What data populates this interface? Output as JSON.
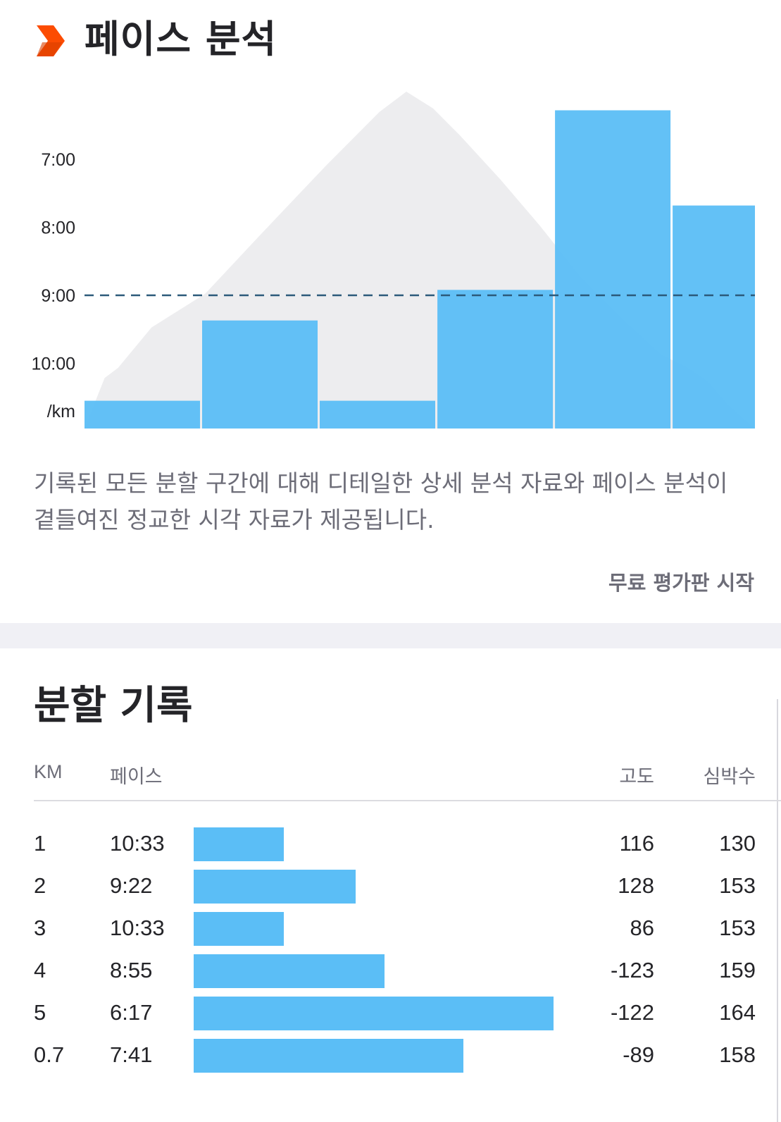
{
  "pace_section": {
    "title": "페이스 분석",
    "description": "기록된 모든 분할 구간에 대해 디테일한 상세 분석 자료와 페이스 분석이 곁들여진 정교한 시각 자료가 제공됩니다.",
    "trial_button": "무료 평가판 시작"
  },
  "colors": {
    "accent": "#fc4c02",
    "bar": "#5bbef6",
    "elevation": "#ededef",
    "average_line": "#2c5a7a"
  },
  "icons": {
    "header": "chevron-right-icon"
  },
  "chart_data": {
    "type": "bar",
    "y_axis": {
      "unit_label": "/km",
      "ticks": [
        "7:00",
        "8:00",
        "9:00",
        "10:00"
      ],
      "tick_minutes": [
        7,
        8,
        9,
        10
      ],
      "inverted": true
    },
    "average_line_pace": "9:00",
    "series": [
      {
        "distances_km": [
          1,
          1,
          1,
          1,
          1,
          0.7
        ],
        "pace_minutes": [
          10.55,
          9.37,
          10.55,
          8.92,
          6.28,
          7.68
        ]
      }
    ],
    "elevation_profile": {
      "distance_fraction": [
        0,
        0.03,
        0.05,
        0.1,
        0.18,
        0.26,
        0.36,
        0.44,
        0.48,
        0.52,
        0.56,
        0.62,
        0.68,
        0.74,
        0.8,
        0.86,
        0.9,
        0.93,
        0.96,
        1
      ],
      "relative_height": [
        0,
        0.15,
        0.18,
        0.3,
        0.4,
        0.57,
        0.78,
        0.94,
        1.0,
        0.95,
        0.87,
        0.74,
        0.6,
        0.45,
        0.33,
        0.22,
        0.18,
        0.14,
        0.07,
        0.0
      ]
    }
  },
  "splits_section": {
    "title": "분할 기록",
    "columns": {
      "km": "KM",
      "pace": "페이스",
      "elevation": "고도",
      "heart_rate": "심박수"
    },
    "rows": [
      {
        "km": "1",
        "pace": "10:33",
        "bar_fraction": 0.25,
        "elevation": "116",
        "heart_rate": "130"
      },
      {
        "km": "2",
        "pace": "9:22",
        "bar_fraction": 0.45,
        "elevation": "128",
        "heart_rate": "153"
      },
      {
        "km": "3",
        "pace": "10:33",
        "bar_fraction": 0.25,
        "elevation": "86",
        "heart_rate": "153"
      },
      {
        "km": "4",
        "pace": "8:55",
        "bar_fraction": 0.53,
        "elevation": "-123",
        "heart_rate": "159"
      },
      {
        "km": "5",
        "pace": "6:17",
        "bar_fraction": 1.0,
        "elevation": "-122",
        "heart_rate": "164"
      },
      {
        "km": "0.7",
        "pace": "7:41",
        "bar_fraction": 0.75,
        "elevation": "-89",
        "heart_rate": "158"
      }
    ]
  }
}
